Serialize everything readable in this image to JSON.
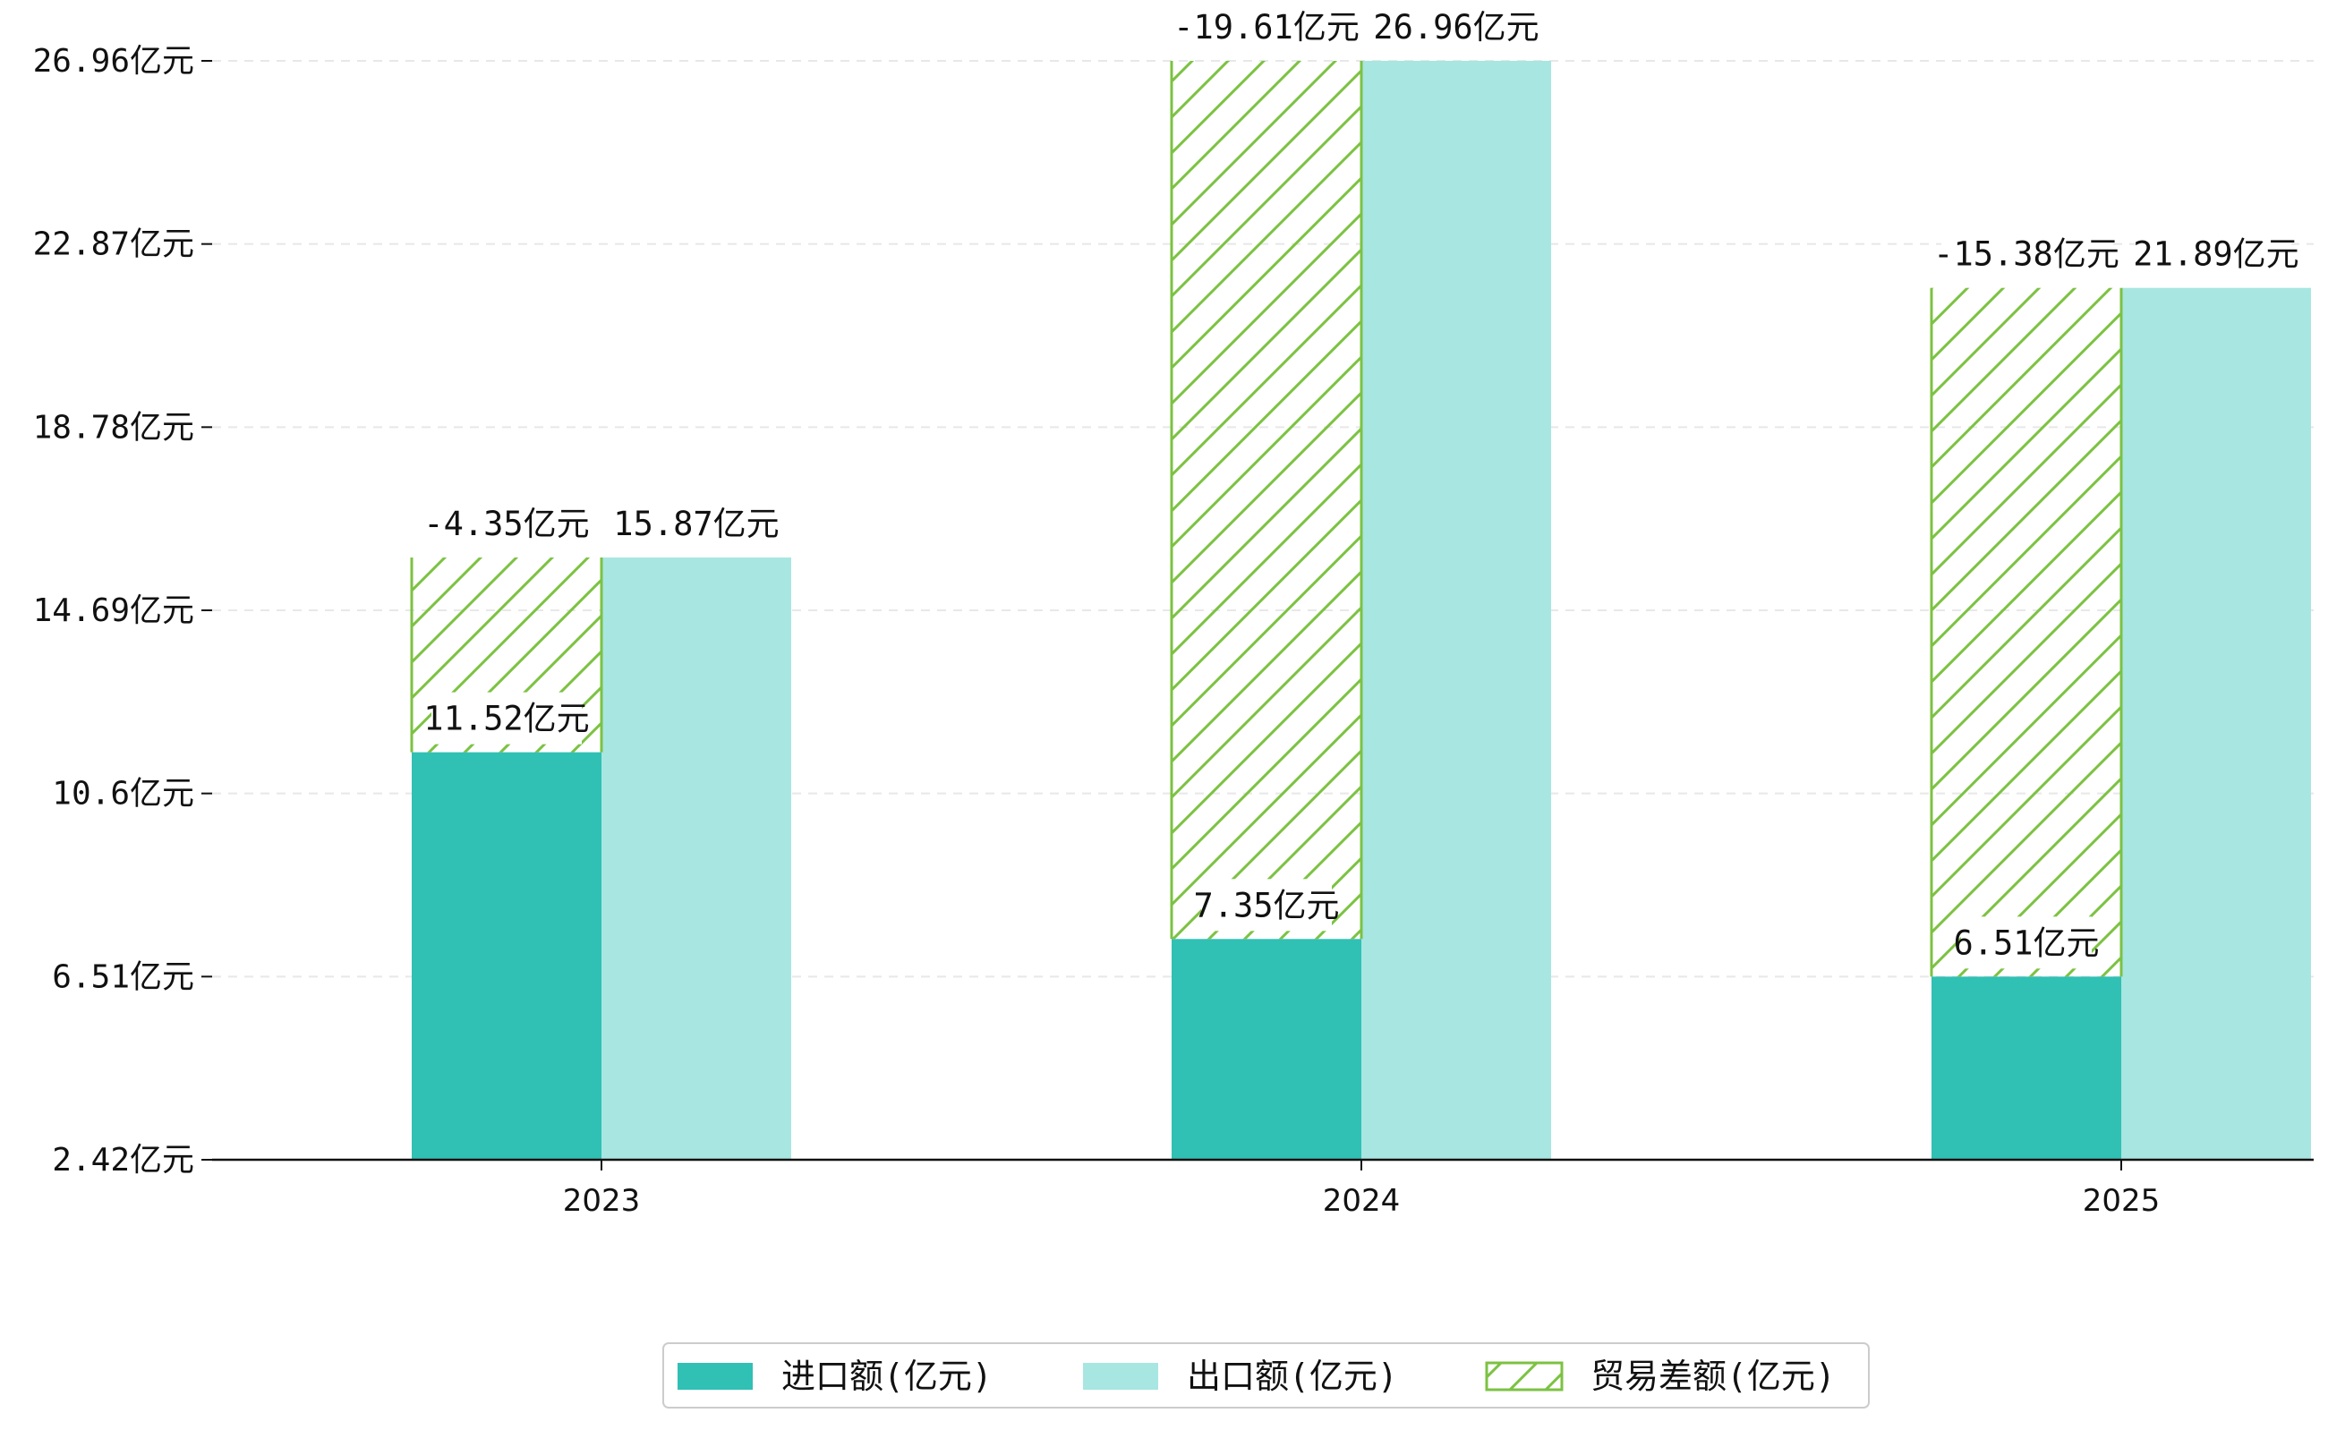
{
  "chart_data": {
    "type": "bar",
    "title": "",
    "xlabel": "",
    "ylabel": "",
    "categories": [
      "2023",
      "2024",
      "2025"
    ],
    "ylim": [
      2.42,
      26.96
    ],
    "yticks": [
      "2.42亿元",
      "6.51亿元",
      "10.6亿元",
      "14.69亿元",
      "18.78亿元",
      "22.87亿元",
      "26.96亿元"
    ],
    "ytick_values": [
      2.42,
      6.51,
      10.6,
      14.69,
      18.78,
      22.87,
      26.96
    ],
    "grid": "horizontal dashed",
    "series": [
      {
        "name": "进口额(亿元)",
        "values": [
          11.52,
          7.35,
          6.51
        ],
        "labels": [
          "11.52亿元",
          "7.35亿元",
          "6.51亿元"
        ],
        "color": "#30c0b4"
      },
      {
        "name": "出口额(亿元)",
        "values": [
          15.87,
          26.96,
          21.89
        ],
        "labels": [
          "15.87亿元",
          "26.96亿元",
          "21.89亿元"
        ],
        "color": "#a8e6e1"
      },
      {
        "name": "贸易差额(亿元)",
        "values": [
          -4.35,
          -19.61,
          -15.38
        ],
        "labels": [
          "-4.35亿元",
          "-19.61亿元",
          "-15.38亿元"
        ],
        "color": "#7cc242",
        "pattern": "hatch"
      }
    ],
    "legend_position": "bottom-center"
  }
}
